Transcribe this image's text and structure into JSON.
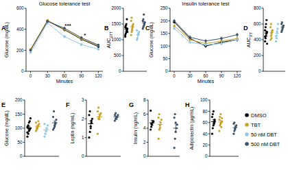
{
  "chart_data": [
    {
      "type": "line",
      "panel": "A",
      "title": "Glucose tolerance test",
      "x_label": "Minutes",
      "y_label": "Glucose (mg/dL)",
      "x": [
        0,
        30,
        60,
        90,
        120
      ],
      "xlim": [
        -8,
        128
      ],
      "xticks": [
        0,
        30,
        60,
        90,
        120
      ],
      "ylim": [
        0,
        600
      ],
      "yticks": [
        0,
        200,
        400,
        600
      ],
      "marker": "circle",
      "legend": "lower right",
      "annotations": [
        {
          "x": 60,
          "text": "***"
        },
        {
          "x": 90,
          "text": "*"
        }
      ],
      "series": [
        {
          "name": "DMSO",
          "color": "#000000",
          "values": [
            205,
            480,
            395,
            305,
            235
          ],
          "errors": [
            8,
            12,
            15,
            15,
            12
          ]
        },
        {
          "name": "TBT",
          "color": "#c9a227",
          "values": [
            210,
            485,
            400,
            310,
            245
          ],
          "errors": [
            8,
            12,
            14,
            14,
            12
          ]
        },
        {
          "name": "50 nM DBT",
          "color": "#8fc6e6",
          "values": [
            180,
            460,
            330,
            255,
            210
          ],
          "errors": [
            8,
            14,
            15,
            14,
            10
          ]
        },
        {
          "name": "500 nM DBT",
          "color": "#3d5168",
          "values": [
            200,
            475,
            410,
            320,
            250
          ],
          "errors": [
            8,
            12,
            14,
            14,
            12
          ]
        }
      ]
    },
    {
      "type": "strip",
      "panel": "B",
      "y_label": "AUC",
      "y_label_subscript": "GTT",
      "ylim": [
        0,
        2000
      ],
      "yticks": [
        0,
        500,
        1000,
        1500,
        2000
      ],
      "categories": [
        null,
        null,
        null,
        null
      ],
      "colors": [
        "#000000",
        "#c9a227",
        "#8fc6e6",
        "#3d5168"
      ],
      "points": [
        [
          1100,
          1200,
          1250,
          1300,
          1350,
          1400,
          1450,
          1500,
          1650,
          1250,
          1150,
          1380
        ],
        [
          1150,
          1250,
          1350,
          1400,
          1500,
          1600,
          1700,
          1300,
          1450
        ],
        [
          1000,
          1050,
          1150,
          1200,
          1250,
          1300
        ],
        [
          1350,
          1400,
          1450,
          1500,
          1550,
          1600,
          1650,
          1800,
          1500
        ]
      ],
      "means": [
        1330,
        1410,
        1160,
        1540
      ],
      "errors": [
        50,
        60,
        60,
        45
      ]
    },
    {
      "type": "line",
      "panel": "C",
      "title": "Insulin tolerance test",
      "x_label": "Minutes",
      "y_label": "Glucose (mg/dL)",
      "x": [
        0,
        30,
        60,
        90,
        120
      ],
      "xlim": [
        -8,
        128
      ],
      "xticks": [
        0,
        30,
        60,
        90,
        120
      ],
      "ylim": [
        0,
        250
      ],
      "yticks": [
        0,
        50,
        100,
        150,
        200,
        250
      ],
      "marker": "circle",
      "series": [
        {
          "name": "DMSO",
          "color": "#000000",
          "values": [
            195,
            130,
            100,
            115,
            125
          ],
          "errors": [
            6,
            8,
            7,
            8,
            8
          ]
        },
        {
          "name": "TBT",
          "color": "#c9a227",
          "values": [
            180,
            125,
            110,
            120,
            130
          ],
          "errors": [
            6,
            8,
            8,
            8,
            8
          ]
        },
        {
          "name": "50 nM DBT",
          "color": "#8fc6e6",
          "values": [
            170,
            115,
            105,
            110,
            125
          ],
          "errors": [
            6,
            8,
            8,
            8,
            8
          ]
        },
        {
          "name": "500 nM DBT",
          "color": "#3d5168",
          "values": [
            200,
            135,
            120,
            130,
            145
          ],
          "errors": [
            6,
            8,
            8,
            8,
            8
          ]
        }
      ]
    },
    {
      "type": "strip",
      "panel": "D",
      "y_label": "AUC",
      "y_label_subscript": "ITT",
      "ylim": [
        0,
        800
      ],
      "yticks": [
        0,
        200,
        400,
        600,
        800
      ],
      "categories": [
        null,
        null,
        null,
        null
      ],
      "colors": [
        "#000000",
        "#c9a227",
        "#8fc6e6",
        "#3d5168"
      ],
      "points": [
        [
          380,
          420,
          450,
          480,
          500,
          520,
          560,
          600,
          650,
          350,
          440
        ],
        [
          400,
          450,
          480,
          500,
          520,
          560,
          600,
          420
        ],
        [
          380,
          420,
          500,
          540,
          600,
          450
        ],
        [
          500,
          520,
          540,
          560,
          580,
          600,
          620
        ]
      ],
      "means": [
        486,
        491,
        482,
        560
      ],
      "errors": [
        25,
        25,
        35,
        15
      ]
    },
    {
      "type": "strip",
      "panel": "E",
      "y_label": "Glucose (mg/dL)",
      "ylim": [
        0,
        200
      ],
      "yticks": [
        0,
        50,
        100,
        150,
        200
      ],
      "categories": [
        null,
        null,
        null,
        null
      ],
      "colors": [
        "#000000",
        "#c9a227",
        "#8fc6e6",
        "#3d5168"
      ],
      "points": [
        [
          70,
          80,
          90,
          95,
          100,
          105,
          110,
          120,
          125,
          135,
          85,
          100
        ],
        [
          90,
          100,
          105,
          110,
          115,
          120,
          95,
          100,
          125
        ],
        [
          70,
          80,
          90,
          100,
          110,
          115
        ],
        [
          95,
          100,
          110,
          120,
          130,
          140,
          160,
          105,
          115
        ]
      ],
      "means": [
        101,
        107,
        94,
        119
      ],
      "errors": [
        6,
        4,
        7,
        7
      ]
    },
    {
      "type": "strip",
      "panel": "F",
      "y_label": "Leptin (ng/mL)",
      "ylim": [
        0,
        3
      ],
      "yticks": [
        0,
        1,
        2,
        3
      ],
      "categories": [
        null,
        null,
        null,
        null
      ],
      "colors": [
        "#000000",
        "#c9a227",
        "#8fc6e6",
        "#3d5168"
      ],
      "points": [
        [
          1.0,
          1.3,
          1.5,
          1.8,
          2.0,
          2.2,
          2.4,
          1.6,
          1.9
        ],
        [
          1.2,
          2.0,
          2.1,
          2.2,
          2.3,
          2.4,
          2.6,
          2.0
        ],
        [],
        [
          1.9,
          2.0,
          2.1,
          2.1,
          2.2,
          2.2,
          2.3,
          2.0
        ]
      ],
      "means": [
        1.74,
        2.1,
        null,
        2.1
      ],
      "errors": [
        0.15,
        0.15,
        null,
        0.05
      ]
    },
    {
      "type": "strip",
      "panel": "G",
      "y_label": "Insulin (ng/mL)",
      "ylim": [
        0,
        8
      ],
      "yticks": [
        0,
        2,
        4,
        6,
        8
      ],
      "categories": [
        null,
        null,
        null,
        null
      ],
      "colors": [
        "#000000",
        "#c9a227",
        "#8fc6e6",
        "#3d5168"
      ],
      "points": [
        [
          3.8,
          4.2,
          4.5,
          4.8,
          5.0,
          6.5,
          4.6
        ],
        [
          2.5,
          3.8,
          4.4,
          4.8,
          5.2,
          5.5,
          6.0,
          4.0
        ],
        [],
        [
          1.2,
          2.5,
          3.5,
          4.0,
          4.5,
          5.5,
          6.0,
          4.8
        ]
      ],
      "means": [
        4.77,
        4.53,
        null,
        4.0
      ],
      "errors": [
        0.35,
        0.4,
        null,
        0.6
      ]
    },
    {
      "type": "strip",
      "panel": "H",
      "y_label": "Adiponectin (µg/mL)",
      "ylim": [
        0,
        100
      ],
      "yticks": [
        0,
        20,
        40,
        60,
        80,
        100
      ],
      "categories": [
        null,
        null,
        null,
        null
      ],
      "colors": [
        "#000000",
        "#c9a227",
        "#8fc6e6",
        "#3d5168"
      ],
      "points": [
        [
          40,
          50,
          55,
          60,
          65,
          70,
          75,
          80,
          58,
          62
        ],
        [
          45,
          55,
          58,
          60,
          62,
          65,
          70,
          75,
          52,
          68
        ],
        [],
        [
          40,
          45,
          50,
          52,
          55,
          58,
          60,
          48
        ]
      ],
      "means": [
        61.5,
        61,
        null,
        51
      ],
      "errors": [
        4,
        3,
        null,
        3
      ]
    }
  ]
}
